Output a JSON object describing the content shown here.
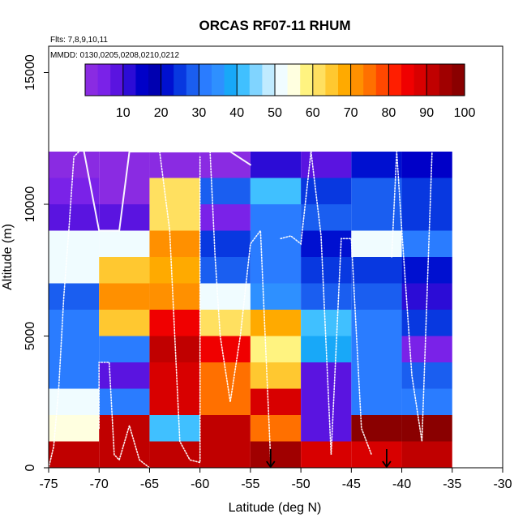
{
  "chart_data": {
    "type": "heatmap",
    "title": "ORCAS RF07-11 RHUM",
    "annotations": [
      "Flts: 7,8,9,10,11",
      "MMDD: 0130,0205,0208,0210,0212"
    ],
    "xlabel": "Latitude (deg N)",
    "ylabel": "Altitude (m)",
    "xlim": [
      -75,
      -30
    ],
    "ylim": [
      0,
      16000
    ],
    "x_ticks": [
      -75,
      -70,
      -65,
      -60,
      -55,
      -50,
      -45,
      -40,
      -35,
      -30
    ],
    "x_tick_labels": [
      "-75",
      "-70",
      "-65",
      "-60",
      "-55",
      "-50",
      "-45",
      "-40",
      "-35",
      "-30"
    ],
    "y_ticks": [
      0,
      5000,
      10000,
      15000
    ],
    "y_tick_labels": [
      "0",
      "5000",
      "10000",
      "15000"
    ],
    "colorbar": {
      "range": [
        0,
        100
      ],
      "ticks": [
        10,
        20,
        30,
        40,
        50,
        60,
        70,
        80,
        90,
        100
      ],
      "tick_labels": [
        "10",
        "20",
        "30",
        "40",
        "50",
        "60",
        "70",
        "80",
        "90",
        "100"
      ],
      "palette": [
        "#8a2be2",
        "#7a22e8",
        "#5a14e0",
        "#2c0cd6",
        "#0000c8",
        "#0000b0",
        "#0010d0",
        "#0838e0",
        "#1a5ef0",
        "#2a7cff",
        "#2e90ff",
        "#18a8f8",
        "#40c0ff",
        "#80d4ff",
        "#c0ebff",
        "#f0fcff",
        "#ffffe0",
        "#fff380",
        "#ffe060",
        "#ffc830",
        "#ffaa00",
        "#ff9000",
        "#ff7000",
        "#ff4800",
        "#ff1e00",
        "#f00000",
        "#d80000",
        "#c00000",
        "#a00000",
        "#8a0000"
      ]
    },
    "cell_grid": {
      "x_edges": [
        -75,
        -70,
        -65,
        -60,
        -55,
        -50,
        -45,
        -40,
        -35
      ],
      "y_edges": [
        0,
        1000,
        2000,
        3000,
        4000,
        5000,
        6000,
        7000,
        8000,
        9000,
        10000,
        11000,
        12000
      ],
      "values": [
        [
          92,
          92,
          92,
          90,
          95,
          88,
          87,
          90
        ],
        [
          55,
          90,
          42,
          90,
          75,
          7,
          97,
          97
        ],
        [
          50,
          30,
          88,
          75,
          88,
          8,
          32,
          30
        ],
        [
          32,
          8,
          88,
          75,
          65,
          8,
          30,
          28
        ],
        [
          32,
          30,
          90,
          84,
          58,
          38,
          32,
          5
        ],
        [
          30,
          65,
          85,
          60,
          68,
          40,
          30,
          25
        ],
        [
          28,
          70,
          72,
          50,
          34,
          28,
          28,
          12
        ],
        [
          50,
          66,
          68,
          28,
          32,
          26,
          24,
          20
        ],
        [
          52,
          50,
          72,
          25,
          30,
          22,
          52,
          30
        ],
        [
          8,
          8,
          60,
          6,
          30,
          28,
          28,
          24
        ],
        [
          4,
          2,
          62,
          28,
          40,
          26,
          28,
          26
        ],
        [
          3,
          3,
          3,
          2,
          12,
          8,
          20,
          14
        ]
      ]
    },
    "flight_tracks": [
      {
        "name": "track-1",
        "style": "dotted",
        "points": [
          [
            -75,
            0
          ],
          [
            -74.5,
            800
          ],
          [
            -74,
            3000
          ],
          [
            -73.5,
            6500
          ],
          [
            -73,
            9000
          ],
          [
            -72.5,
            11800
          ],
          [
            -72,
            12000
          ]
        ]
      },
      {
        "name": "track-2",
        "style": "solid",
        "points": [
          [
            -71.5,
            12000
          ],
          [
            -70,
            9000
          ],
          [
            -68,
            9000
          ],
          [
            -67,
            12000
          ],
          [
            -60,
            12000
          ],
          [
            -57,
            12000
          ],
          [
            -55,
            11500
          ]
        ]
      },
      {
        "name": "track-3",
        "style": "dotted",
        "points": [
          [
            -70,
            1500
          ],
          [
            -70,
            4000
          ],
          [
            -69,
            4000
          ],
          [
            -68.5,
            500
          ],
          [
            -68,
            300
          ],
          [
            -67,
            1600
          ],
          [
            -66,
            300
          ],
          [
            -65,
            0
          ]
        ]
      },
      {
        "name": "track-4",
        "style": "dotted",
        "points": [
          [
            -64,
            12000
          ],
          [
            -63,
            9000
          ],
          [
            -62,
            1000
          ],
          [
            -61,
            300
          ],
          [
            -60,
            200
          ],
          [
            -60,
            11800
          ]
        ]
      },
      {
        "name": "track-5",
        "style": "dotted",
        "points": [
          [
            -59,
            12000
          ],
          [
            -58.5,
            8000
          ],
          [
            -58,
            5000
          ],
          [
            -57,
            2500
          ],
          [
            -56,
            5000
          ],
          [
            -55,
            8500
          ],
          [
            -54,
            9000
          ],
          [
            -53,
            300
          ]
        ]
      },
      {
        "name": "track-6",
        "style": "dotted",
        "points": [
          [
            -52,
            8700
          ],
          [
            -51,
            8800
          ],
          [
            -50,
            8500
          ],
          [
            -49,
            12000
          ],
          [
            -48,
            8800
          ],
          [
            -47,
            500
          ],
          [
            -46,
            8700
          ],
          [
            -45,
            8700
          ],
          [
            -44,
            1500
          ],
          [
            -43,
            500
          ]
        ]
      },
      {
        "name": "track-7",
        "style": "dotted",
        "points": [
          [
            -41,
            8000
          ],
          [
            -40.5,
            12000
          ],
          [
            -40,
            9000
          ],
          [
            -39,
            3500
          ],
          [
            -38,
            1000
          ],
          [
            -37,
            12000
          ]
        ]
      }
    ],
    "markers": [
      {
        "name": "arrow-marker-1",
        "x": -53,
        "y": 0
      },
      {
        "name": "arrow-marker-2",
        "x": -41.5,
        "y": 0
      }
    ]
  }
}
